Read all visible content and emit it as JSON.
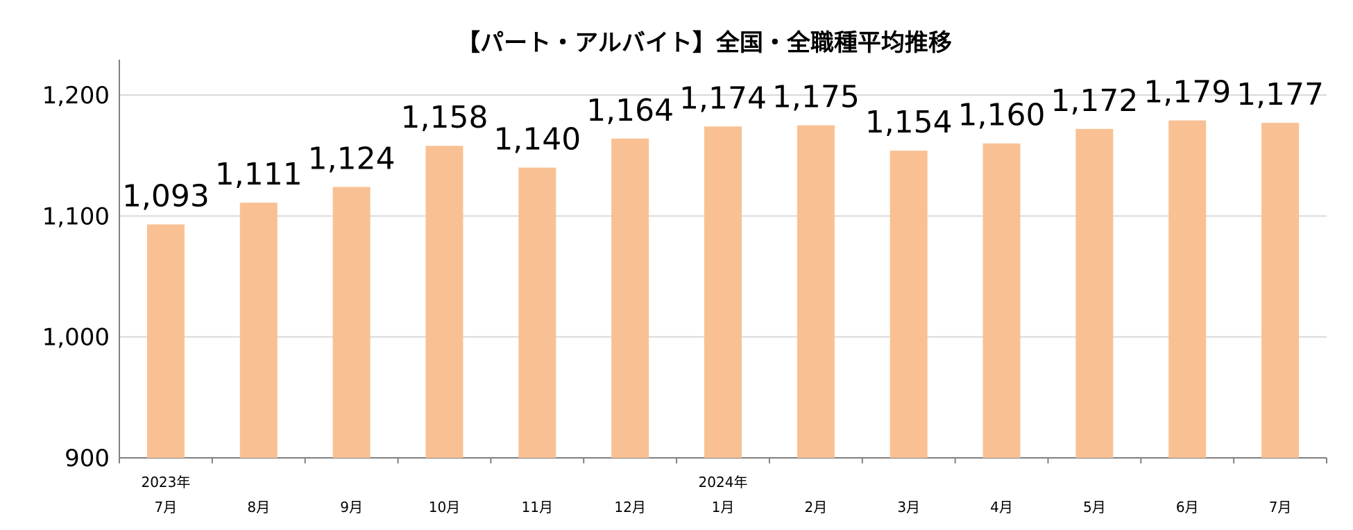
{
  "chart_data": {
    "type": "bar",
    "title": "【パート・アルバイト】全国・全職種平均推移",
    "categories": [
      "7月",
      "8月",
      "9月",
      "10月",
      "11月",
      "12月",
      "1月",
      "2月",
      "3月",
      "4月",
      "5月",
      "6月",
      "7月"
    ],
    "year_labels": [
      {
        "index": 0,
        "label": "2023年"
      },
      {
        "index": 6,
        "label": "2024年"
      }
    ],
    "values": [
      1093,
      1111,
      1124,
      1158,
      1140,
      1164,
      1174,
      1175,
      1154,
      1160,
      1172,
      1179,
      1177
    ],
    "value_labels": [
      "1,093",
      "1,111",
      "1,124",
      "1,158",
      "1,140",
      "1,164",
      "1,174",
      "1,175",
      "1,154",
      "1,160",
      "1,172",
      "1,179",
      "1,177"
    ],
    "yticks": [
      900,
      1000,
      1100,
      1200
    ],
    "ytick_labels": [
      "900",
      "1,000",
      "1,100",
      "1,200"
    ],
    "ylim": [
      900,
      1230
    ],
    "grid": true,
    "legend": "none",
    "bar_color": "#F9C193",
    "grid_color": "#D9D9D9",
    "axis_color": "#808080"
  }
}
